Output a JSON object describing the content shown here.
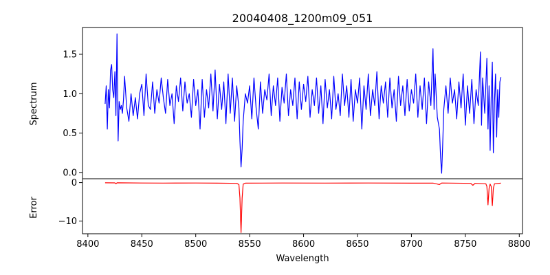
{
  "chart_data": [
    {
      "type": "line",
      "panel": "top",
      "title": "20040408_1200m09_051",
      "ylabel": "Spectrum",
      "xlim": [
        8395,
        8803
      ],
      "ylim": [
        -0.08,
        1.84
      ],
      "yticks": [
        0.0,
        0.5,
        1.0,
        1.5
      ],
      "ytick_labels": [
        "0.0",
        "0.5",
        "1.0",
        "1.5"
      ],
      "grid": false,
      "series": [
        {
          "color": "#0000ff",
          "x_start": 8416,
          "x_end": 8783,
          "points": [
            [
              8416,
              0.87
            ],
            [
              8417,
              1.1
            ],
            [
              8418,
              0.55
            ],
            [
              8419,
              1.05
            ],
            [
              8420,
              0.82
            ],
            [
              8421,
              1.3
            ],
            [
              8422,
              1.37
            ],
            [
              8423,
              1.05
            ],
            [
              8424,
              0.95
            ],
            [
              8425,
              1.28
            ],
            [
              8426,
              0.72
            ],
            [
              8427,
              1.76
            ],
            [
              8428,
              0.4
            ],
            [
              8429,
              0.9
            ],
            [
              8430,
              0.8
            ],
            [
              8431,
              0.85
            ],
            [
              8432,
              0.75
            ],
            [
              8433,
              0.92
            ],
            [
              8434,
              1.22
            ],
            [
              8436,
              0.82
            ],
            [
              8438,
              0.65
            ],
            [
              8440,
              1.0
            ],
            [
              8442,
              0.72
            ],
            [
              8444,
              0.95
            ],
            [
              8446,
              0.68
            ],
            [
              8448,
              1.0
            ],
            [
              8450,
              1.12
            ],
            [
              8452,
              0.72
            ],
            [
              8454,
              1.25
            ],
            [
              8456,
              0.85
            ],
            [
              8458,
              0.8
            ],
            [
              8460,
              1.15
            ],
            [
              8462,
              0.75
            ],
            [
              8464,
              1.05
            ],
            [
              8466,
              0.88
            ],
            [
              8468,
              1.2
            ],
            [
              8470,
              0.95
            ],
            [
              8472,
              0.75
            ],
            [
              8474,
              1.18
            ],
            [
              8476,
              0.85
            ],
            [
              8478,
              1.0
            ],
            [
              8480,
              0.62
            ],
            [
              8482,
              1.1
            ],
            [
              8484,
              0.9
            ],
            [
              8486,
              1.2
            ],
            [
              8488,
              0.78
            ],
            [
              8490,
              1.15
            ],
            [
              8492,
              0.88
            ],
            [
              8494,
              1.0
            ],
            [
              8496,
              0.7
            ],
            [
              8498,
              1.18
            ],
            [
              8500,
              0.85
            ],
            [
              8502,
              1.05
            ],
            [
              8504,
              0.55
            ],
            [
              8506,
              1.18
            ],
            [
              8508,
              0.7
            ],
            [
              8510,
              1.05
            ],
            [
              8512,
              0.82
            ],
            [
              8514,
              1.25
            ],
            [
              8516,
              0.78
            ],
            [
              8518,
              1.3
            ],
            [
              8520,
              0.68
            ],
            [
              8522,
              1.12
            ],
            [
              8524,
              0.8
            ],
            [
              8526,
              1.15
            ],
            [
              8528,
              0.62
            ],
            [
              8530,
              1.25
            ],
            [
              8532,
              0.75
            ],
            [
              8534,
              1.2
            ],
            [
              8536,
              0.65
            ],
            [
              8538,
              1.1
            ],
            [
              8540,
              0.82
            ],
            [
              8541,
              0.4
            ],
            [
              8542,
              0.07
            ],
            [
              8543,
              0.3
            ],
            [
              8544,
              0.65
            ],
            [
              8546,
              1.0
            ],
            [
              8548,
              0.88
            ],
            [
              8550,
              1.1
            ],
            [
              8552,
              0.68
            ],
            [
              8554,
              1.2
            ],
            [
              8556,
              0.82
            ],
            [
              8558,
              0.55
            ],
            [
              8560,
              1.15
            ],
            [
              8562,
              0.75
            ],
            [
              8564,
              1.05
            ],
            [
              8566,
              0.92
            ],
            [
              8568,
              1.25
            ],
            [
              8570,
              0.72
            ],
            [
              8572,
              1.1
            ],
            [
              8574,
              0.85
            ],
            [
              8576,
              1.2
            ],
            [
              8578,
              0.65
            ],
            [
              8580,
              1.08
            ],
            [
              8582,
              0.88
            ],
            [
              8584,
              1.25
            ],
            [
              8586,
              0.72
            ],
            [
              8588,
              1.05
            ],
            [
              8590,
              0.85
            ],
            [
              8592,
              1.2
            ],
            [
              8594,
              0.68
            ],
            [
              8596,
              1.15
            ],
            [
              8598,
              0.8
            ],
            [
              8600,
              1.12
            ],
            [
              8602,
              0.9
            ],
            [
              8604,
              1.22
            ],
            [
              8606,
              0.7
            ],
            [
              8608,
              1.05
            ],
            [
              8610,
              0.85
            ],
            [
              8612,
              1.2
            ],
            [
              8614,
              0.75
            ],
            [
              8616,
              1.1
            ],
            [
              8618,
              0.62
            ],
            [
              8620,
              1.18
            ],
            [
              8622,
              0.82
            ],
            [
              8624,
              1.05
            ],
            [
              8626,
              0.68
            ],
            [
              8628,
              1.22
            ],
            [
              8630,
              0.8
            ],
            [
              8632,
              1.0
            ],
            [
              8634,
              0.72
            ],
            [
              8636,
              1.25
            ],
            [
              8638,
              0.85
            ],
            [
              8640,
              1.1
            ],
            [
              8642,
              0.7
            ],
            [
              8644,
              1.18
            ],
            [
              8646,
              0.65
            ],
            [
              8648,
              1.05
            ],
            [
              8650,
              0.88
            ],
            [
              8652,
              1.2
            ],
            [
              8654,
              0.55
            ],
            [
              8656,
              1.1
            ],
            [
              8658,
              0.8
            ],
            [
              8660,
              1.25
            ],
            [
              8662,
              0.72
            ],
            [
              8664,
              1.05
            ],
            [
              8666,
              0.85
            ],
            [
              8668,
              1.28
            ],
            [
              8670,
              0.68
            ],
            [
              8672,
              1.1
            ],
            [
              8674,
              0.88
            ],
            [
              8676,
              1.15
            ],
            [
              8678,
              0.7
            ],
            [
              8680,
              1.2
            ],
            [
              8682,
              0.82
            ],
            [
              8684,
              1.05
            ],
            [
              8686,
              0.65
            ],
            [
              8688,
              1.22
            ],
            [
              8690,
              0.85
            ],
            [
              8692,
              1.1
            ],
            [
              8694,
              0.72
            ],
            [
              8696,
              1.18
            ],
            [
              8698,
              0.78
            ],
            [
              8700,
              1.05
            ],
            [
              8702,
              0.88
            ],
            [
              8704,
              1.25
            ],
            [
              8706,
              0.7
            ],
            [
              8708,
              1.1
            ],
            [
              8710,
              0.8
            ],
            [
              8712,
              1.2
            ],
            [
              8714,
              0.62
            ],
            [
              8716,
              1.15
            ],
            [
              8718,
              0.85
            ],
            [
              8720,
              1.57
            ],
            [
              8721,
              0.8
            ],
            [
              8722,
              1.25
            ],
            [
              8724,
              0.7
            ],
            [
              8726,
              0.55
            ],
            [
              8727,
              0.2
            ],
            [
              8728,
              -0.01
            ],
            [
              8729,
              0.35
            ],
            [
              8730,
              0.8
            ],
            [
              8732,
              1.1
            ],
            [
              8734,
              0.75
            ],
            [
              8736,
              1.2
            ],
            [
              8738,
              0.88
            ],
            [
              8740,
              1.05
            ],
            [
              8742,
              0.68
            ],
            [
              8744,
              1.15
            ],
            [
              8746,
              0.82
            ],
            [
              8748,
              1.25
            ],
            [
              8750,
              0.6
            ],
            [
              8752,
              1.1
            ],
            [
              8754,
              0.75
            ],
            [
              8756,
              1.18
            ],
            [
              8758,
              0.62
            ],
            [
              8760,
              1.05
            ],
            [
              8762,
              0.85
            ],
            [
              8764,
              1.53
            ],
            [
              8765,
              0.6
            ],
            [
              8766,
              1.2
            ],
            [
              8768,
              0.75
            ],
            [
              8770,
              1.45
            ],
            [
              8771,
              0.55
            ],
            [
              8772,
              1.1
            ],
            [
              8773,
              0.28
            ],
            [
              8774,
              0.95
            ],
            [
              8775,
              1.4
            ],
            [
              8776,
              0.25
            ],
            [
              8777,
              0.9
            ],
            [
              8778,
              1.25
            ],
            [
              8779,
              0.45
            ],
            [
              8780,
              1.05
            ],
            [
              8781,
              0.7
            ],
            [
              8782,
              1.15
            ],
            [
              8783,
              1.21
            ]
          ]
        }
      ]
    },
    {
      "type": "line",
      "panel": "bottom",
      "title": "",
      "xlabel": "Wavelength",
      "ylabel": "Error",
      "xlim": [
        8395,
        8803
      ],
      "ylim": [
        -13.3,
        1.0
      ],
      "xticks": [
        8400,
        8450,
        8500,
        8550,
        8600,
        8650,
        8700,
        8750,
        8800
      ],
      "xtick_labels": [
        "8400",
        "8450",
        "8500",
        "8550",
        "8600",
        "8650",
        "8700",
        "8750",
        "8800"
      ],
      "yticks": [
        0,
        -10
      ],
      "ytick_labels": [
        "0",
        "−10"
      ],
      "grid": false,
      "series": [
        {
          "color": "#ff0000",
          "points": [
            [
              8416,
              -0.05
            ],
            [
              8425,
              -0.08
            ],
            [
              8426,
              -0.3
            ],
            [
              8427,
              -0.05
            ],
            [
              8450,
              -0.1
            ],
            [
              8470,
              -0.12
            ],
            [
              8500,
              -0.1
            ],
            [
              8520,
              -0.15
            ],
            [
              8538,
              -0.2
            ],
            [
              8540,
              -0.5
            ],
            [
              8541,
              -4.0
            ],
            [
              8542,
              -13.0
            ],
            [
              8543,
              -4.0
            ],
            [
              8544,
              -0.4
            ],
            [
              8546,
              -0.15
            ],
            [
              8580,
              -0.1
            ],
            [
              8620,
              -0.12
            ],
            [
              8660,
              -0.1
            ],
            [
              8700,
              -0.15
            ],
            [
              8720,
              -0.12
            ],
            [
              8726,
              -0.5
            ],
            [
              8728,
              -0.1
            ],
            [
              8755,
              -0.2
            ],
            [
              8757,
              -0.7
            ],
            [
              8759,
              -0.2
            ],
            [
              8769,
              -0.3
            ],
            [
              8770,
              -1.0
            ],
            [
              8771,
              -5.8
            ],
            [
              8772,
              -1.5
            ],
            [
              8773,
              -0.4
            ],
            [
              8774,
              -1.0
            ],
            [
              8775,
              -6.0
            ],
            [
              8776,
              -1.5
            ],
            [
              8777,
              -0.3
            ],
            [
              8783,
              -0.15
            ]
          ]
        }
      ]
    }
  ]
}
